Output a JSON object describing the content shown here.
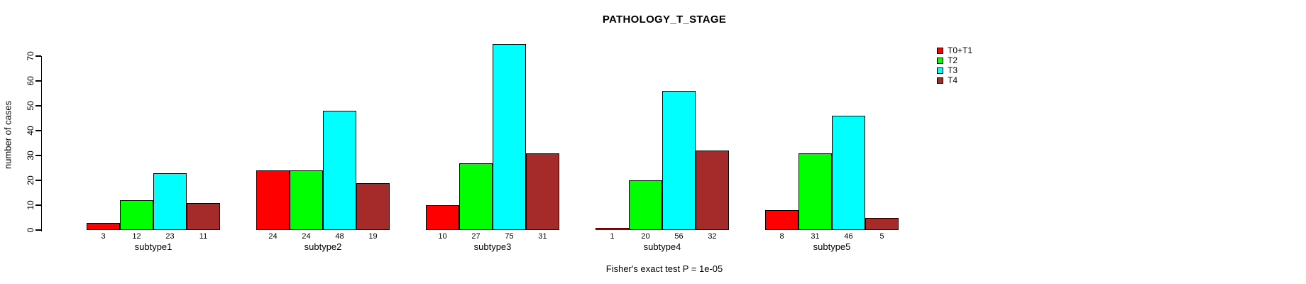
{
  "chart_data": {
    "type": "bar",
    "title": "PATHOLOGY_T_STAGE",
    "ylabel": "number of cases",
    "xlabel": "",
    "footer": "Fisher's exact test P = 1e-05",
    "categories": [
      "subtype1",
      "subtype2",
      "subtype3",
      "subtype4",
      "subtype5"
    ],
    "series": [
      {
        "name": "T0+T1",
        "color": "#FF0000",
        "values": [
          3,
          24,
          10,
          1,
          8
        ]
      },
      {
        "name": "T2",
        "color": "#00FF00",
        "values": [
          12,
          24,
          27,
          20,
          31
        ]
      },
      {
        "name": "T3",
        "color": "#00FFFF",
        "values": [
          23,
          48,
          75,
          56,
          46
        ]
      },
      {
        "name": "T4",
        "color": "#A52A2A",
        "values": [
          11,
          19,
          31,
          32,
          5
        ]
      }
    ],
    "yticks": [
      0,
      10,
      20,
      30,
      40,
      50,
      60,
      70
    ],
    "ylim": [
      0,
      77
    ],
    "bar_value_labels_shown": true,
    "grid": false,
    "legend_position": "top-right",
    "background_color": "#FFFFFF",
    "text_color": "#000000"
  }
}
